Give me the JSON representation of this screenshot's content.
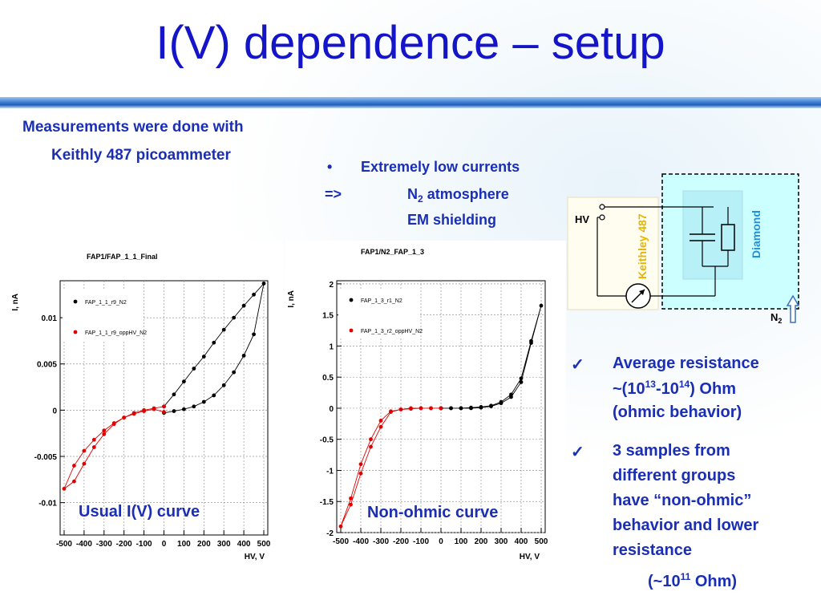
{
  "slide": {
    "title": "I(V) dependence – setup",
    "meas_line1": "Measurements were done with",
    "meas_line2": "Keithly 487 picoammeter",
    "bullet_char": "•",
    "bullet_text": "Extremely low currents",
    "arrow": "=>",
    "n2_prefix": "N",
    "n2_sub": "2",
    "n2_rest": " atmosphere",
    "em_shielding": "EM shielding",
    "check_char": "✓",
    "r1_line1": "Average resistance",
    "r1_l2_pre": "~(10",
    "r1_l2_sup1": "13",
    "r1_l2_mid": "-10",
    "r1_l2_sup2": "14",
    "r1_l2_post": ") Ohm",
    "r1_line3": "(ohmic behavior)",
    "r2_line1": "3 samples from",
    "r2_line2": "different groups",
    "r2_line3": "have “non-ohmic”",
    "r2_line4": "behavior  and lower",
    "r2_line5": "resistance",
    "r2_l6_pre": "(~10",
    "r2_l6_sup": "11",
    "r2_l6_post": " Ohm)"
  },
  "circuit": {
    "hv_label": "HV",
    "keithley_label": "Keithley 487",
    "diamond_label": "Diamond",
    "n2_label": "N",
    "n2_sub": "2",
    "colors": {
      "keithley": "#e8b400",
      "diamond": "#1e90e0",
      "box_fill": "#ccffff",
      "inner_fill": "#b8f0f8"
    }
  },
  "chart_data": [
    {
      "type": "scatter",
      "title": "FAP1/FAP_1_1_Final",
      "xlabel": "HV, V",
      "ylabel": "I, nA",
      "xlim": [
        -520,
        520
      ],
      "ylim": [
        -0.0135,
        0.014
      ],
      "xticks": [
        -500,
        -400,
        -300,
        -200,
        -100,
        0,
        100,
        200,
        300,
        400,
        500
      ],
      "xtick_labels": [
        "-500",
        "-400",
        "-300",
        "-200",
        "-100",
        "0",
        "100",
        "200",
        "300",
        "400",
        "500"
      ],
      "yticks": [
        -0.01,
        -0.005,
        0,
        0.005,
        0.01
      ],
      "ytick_labels": [
        "-0.01",
        "-0.005",
        "0",
        "0.005",
        "0.01"
      ],
      "grid": true,
      "caption": "Usual I(V) curve",
      "series": [
        {
          "name": "FAP_1_1_r9_N2",
          "color": "#000000",
          "x": [
            0,
            50,
            100,
            150,
            200,
            250,
            300,
            350,
            400,
            450,
            500,
            450,
            400,
            350,
            300,
            250,
            200,
            150,
            100,
            50,
            0
          ],
          "y": [
            -0.0003,
            -0.0001,
            0.0001,
            0.0004,
            0.0009,
            0.0016,
            0.0027,
            0.0041,
            0.0059,
            0.0082,
            0.0137,
            0.0125,
            0.0113,
            0.01,
            0.0087,
            0.0073,
            0.0058,
            0.0045,
            0.0031,
            0.0017,
            0.0004
          ]
        },
        {
          "name": "FAP_1_1_r9_oppHV_N2",
          "color": "#e00000",
          "x": [
            0,
            -50,
            -100,
            -150,
            -200,
            -250,
            -300,
            -350,
            -400,
            -450,
            -500,
            -450,
            -400,
            -350,
            -300,
            -250,
            -200,
            -150,
            -100,
            -50,
            0
          ],
          "y": [
            0.0004,
            0.0002,
            0.0,
            -0.0003,
            -0.0008,
            -0.0015,
            -0.0026,
            -0.004,
            -0.0058,
            -0.0077,
            -0.0085,
            -0.006,
            -0.0044,
            -0.0032,
            -0.0022,
            -0.0014,
            -0.0008,
            -0.0004,
            -0.0001,
            0.0001,
            -0.0002
          ]
        }
      ]
    },
    {
      "type": "scatter",
      "title": "FAP1/N2_FAP_1_3",
      "xlabel": "HV, V",
      "ylabel": "I, nA",
      "xlim": [
        -520,
        520
      ],
      "ylim": [
        -2.0,
        2.05
      ],
      "xticks": [
        -500,
        -400,
        -300,
        -200,
        -100,
        0,
        100,
        200,
        300,
        400,
        500
      ],
      "xtick_labels": [
        "-500",
        "-400",
        "-300",
        "-200",
        "-100",
        "0",
        "100",
        "200",
        "300",
        "400",
        "500"
      ],
      "yticks": [
        -2,
        -1.5,
        -1,
        -0.5,
        0,
        0.5,
        1,
        1.5,
        2
      ],
      "ytick_labels": [
        "-2",
        "-1.5",
        "-1",
        "-0.5",
        "0",
        "0.5",
        "1",
        "1.5",
        "2"
      ],
      "grid": true,
      "caption": "Non-ohmic curve",
      "series": [
        {
          "name": "FAP_1_3_r1_N2",
          "color": "#000000",
          "x": [
            0,
            50,
            100,
            150,
            200,
            250,
            300,
            350,
            400,
            450,
            500,
            450,
            400,
            350,
            300,
            250,
            200,
            150,
            100,
            50,
            0
          ],
          "y": [
            0.0,
            0.0,
            0.0,
            0.0,
            0.01,
            0.03,
            0.08,
            0.18,
            0.42,
            1.05,
            1.65,
            1.08,
            0.48,
            0.22,
            0.1,
            0.04,
            0.02,
            0.01,
            0.0,
            0.0,
            0.0
          ]
        },
        {
          "name": "FAP_1_3_r2_oppHV_N2",
          "color": "#e00000",
          "x": [
            0,
            -50,
            -100,
            -150,
            -200,
            -250,
            -300,
            -350,
            -400,
            -450,
            -500,
            -450,
            -400,
            -350,
            -300,
            -250,
            -200,
            -150,
            -100,
            -50,
            0
          ],
          "y": [
            0.0,
            0.0,
            0.0,
            0.0,
            -0.02,
            -0.05,
            -0.2,
            -0.5,
            -0.9,
            -1.45,
            -1.9,
            -1.55,
            -1.05,
            -0.62,
            -0.3,
            -0.06,
            -0.02,
            -0.01,
            0.0,
            0.0,
            0.0
          ]
        }
      ]
    }
  ]
}
